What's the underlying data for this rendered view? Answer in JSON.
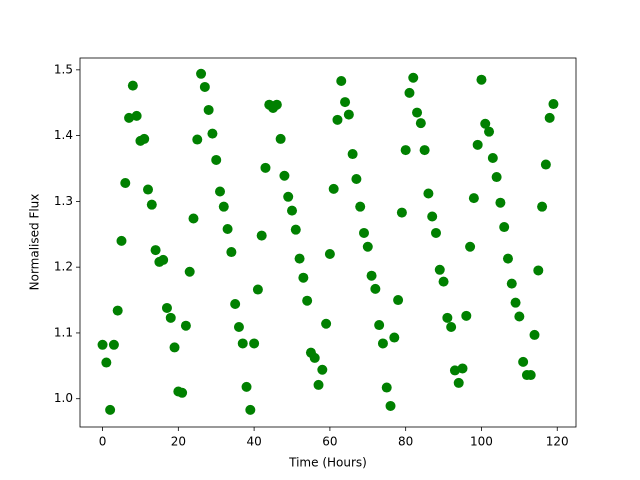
{
  "chart_data": {
    "type": "scatter",
    "xlabel": "Time (Hours)",
    "ylabel": "Normalised Flux",
    "color": "#008000",
    "x": [
      0,
      1,
      2,
      3,
      4,
      5,
      6,
      7,
      8,
      9,
      10,
      11,
      12,
      13,
      14,
      15,
      16,
      17,
      18,
      19,
      20,
      21,
      22,
      23,
      24,
      25,
      26,
      27,
      28,
      29,
      30,
      31,
      32,
      33,
      34,
      35,
      36,
      37,
      38,
      39,
      40,
      41,
      42,
      43,
      44,
      45,
      46,
      47,
      48,
      49,
      50,
      51,
      52,
      53,
      54,
      55,
      56,
      57,
      58,
      59,
      60,
      61,
      62,
      63,
      64,
      65,
      66,
      67,
      68,
      69,
      70,
      71,
      72,
      73,
      74,
      75,
      76,
      77,
      78,
      79,
      80,
      81,
      82,
      83,
      84,
      85,
      86,
      87,
      88,
      89,
      90,
      91,
      92,
      93,
      94,
      95,
      96,
      97,
      98,
      99,
      100,
      101,
      102,
      103,
      104,
      105,
      106,
      107,
      108,
      109,
      110,
      111,
      112,
      113,
      114,
      115,
      116,
      117,
      118,
      119
    ],
    "values": [
      1.082,
      1.055,
      0.983,
      1.082,
      1.134,
      1.24,
      1.328,
      1.427,
      1.476,
      1.43,
      1.392,
      1.395,
      1.318,
      1.295,
      1.226,
      1.208,
      1.211,
      1.138,
      1.123,
      1.078,
      1.011,
      1.009,
      1.111,
      1.193,
      1.274,
      1.394,
      1.494,
      1.474,
      1.439,
      1.403,
      1.363,
      1.315,
      1.292,
      1.258,
      1.223,
      1.144,
      1.109,
      1.084,
      1.018,
      0.983,
      1.084,
      1.166,
      1.248,
      1.351,
      1.447,
      1.442,
      1.447,
      1.395,
      1.339,
      1.307,
      1.286,
      1.257,
      1.213,
      1.184,
      1.149,
      1.07,
      1.062,
      1.021,
      1.044,
      1.114,
      1.22,
      1.319,
      1.424,
      1.483,
      1.451,
      1.432,
      1.372,
      1.334,
      1.292,
      1.252,
      1.231,
      1.187,
      1.167,
      1.112,
      1.084,
      1.017,
      0.989,
      1.093,
      1.15,
      1.283,
      1.378,
      1.465,
      1.488,
      1.435,
      1.419,
      1.378,
      1.312,
      1.277,
      1.252,
      1.196,
      1.178,
      1.123,
      1.109,
      1.043,
      1.024,
      1.046,
      1.126,
      1.231,
      1.305,
      1.386,
      1.485,
      1.418,
      1.406,
      1.366,
      1.337,
      1.298,
      1.261,
      1.213,
      1.175,
      1.146,
      1.125,
      1.056,
      1.036,
      1.036,
      1.097,
      1.195,
      1.292,
      1.356,
      1.427,
      1.448
    ],
    "xlim": [
      -5.95,
      124.95
    ],
    "ylim": [
      0.957,
      1.518
    ],
    "xticks": [
      0,
      20,
      40,
      60,
      80,
      100,
      120
    ],
    "yticks": [
      {
        "value": 1,
        "label": "1.0"
      },
      1.1,
      1.2,
      1.3,
      1.4,
      1.5
    ],
    "grid": false
  }
}
